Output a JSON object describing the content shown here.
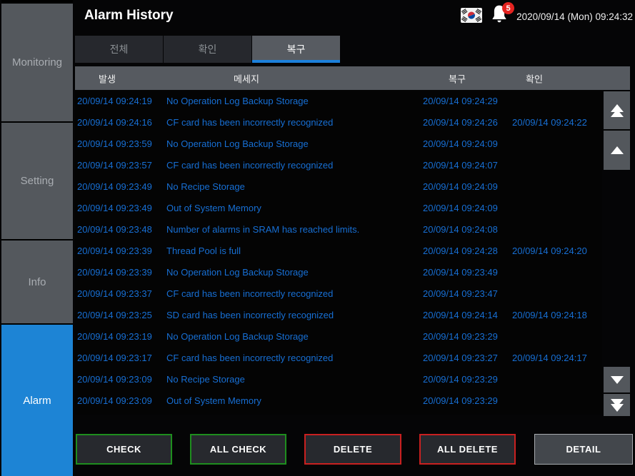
{
  "colors": {
    "accent_blue": "#1c80da",
    "sidebar_active_blue": "#1d84d5",
    "row_text_blue": "#176fd4",
    "badge_red": "#e42320",
    "check_border_green": "#1e8e1e",
    "delete_border_red": "#c92020",
    "header_gray": "#565a60"
  },
  "sidebar": {
    "items": [
      {
        "label": "Monitoring",
        "active": false
      },
      {
        "label": "Setting",
        "active": false
      },
      {
        "label": "Info",
        "active": false
      },
      {
        "label": "Alarm",
        "active": true
      }
    ]
  },
  "header": {
    "title": "Alarm History",
    "flag_icon": "south-korea-flag-icon",
    "bell_icon": "notification-bell-icon",
    "badge_count": "5",
    "datetime": "2020/09/14 (Mon) 09:24:32"
  },
  "tabs": [
    {
      "label": "전체",
      "active": false
    },
    {
      "label": "확인",
      "active": false
    },
    {
      "label": "복구",
      "active": true
    }
  ],
  "table": {
    "columns": [
      "발생",
      "메세지",
      "복구",
      "확인"
    ],
    "rows": [
      {
        "occurred": "20/09/14 09:24:19",
        "message": "No Operation Log Backup Storage",
        "recovered": "20/09/14 09:24:29",
        "checked": ""
      },
      {
        "occurred": "20/09/14 09:24:16",
        "message": "CF card has been incorrectly recognized",
        "recovered": "20/09/14 09:24:26",
        "checked": "20/09/14 09:24:22"
      },
      {
        "occurred": "20/09/14 09:23:59",
        "message": "No Operation Log Backup Storage",
        "recovered": "20/09/14 09:24:09",
        "checked": ""
      },
      {
        "occurred": "20/09/14 09:23:57",
        "message": "CF card has been incorrectly recognized",
        "recovered": "20/09/14 09:24:07",
        "checked": ""
      },
      {
        "occurred": "20/09/14 09:23:49",
        "message": "No Recipe Storage",
        "recovered": "20/09/14 09:24:09",
        "checked": ""
      },
      {
        "occurred": "20/09/14 09:23:49",
        "message": "Out of System Memory",
        "recovered": "20/09/14 09:24:09",
        "checked": ""
      },
      {
        "occurred": "20/09/14 09:23:48",
        "message": "Number of alarms in SRAM has reached limits.",
        "recovered": "20/09/14 09:24:08",
        "checked": ""
      },
      {
        "occurred": "20/09/14 09:23:39",
        "message": "Thread Pool is full",
        "recovered": "20/09/14 09:24:28",
        "checked": "20/09/14 09:24:20"
      },
      {
        "occurred": "20/09/14 09:23:39",
        "message": "No Operation Log Backup Storage",
        "recovered": "20/09/14 09:23:49",
        "checked": ""
      },
      {
        "occurred": "20/09/14 09:23:37",
        "message": "CF card has been incorrectly recognized",
        "recovered": "20/09/14 09:23:47",
        "checked": ""
      },
      {
        "occurred": "20/09/14 09:23:25",
        "message": "SD card has been incorrectly recognized",
        "recovered": "20/09/14 09:24:14",
        "checked": "20/09/14 09:24:18"
      },
      {
        "occurred": "20/09/14 09:23:19",
        "message": "No Operation Log Backup Storage",
        "recovered": "20/09/14 09:23:29",
        "checked": ""
      },
      {
        "occurred": "20/09/14 09:23:17",
        "message": "CF card has been incorrectly recognized",
        "recovered": "20/09/14 09:23:27",
        "checked": "20/09/14 09:24:17"
      },
      {
        "occurred": "20/09/14 09:23:09",
        "message": "No Recipe Storage",
        "recovered": "20/09/14 09:23:29",
        "checked": ""
      },
      {
        "occurred": "20/09/14 09:23:09",
        "message": "Out of System Memory",
        "recovered": "20/09/14 09:23:29",
        "checked": ""
      }
    ]
  },
  "scrollbar": {
    "controls": [
      {
        "name": "scroll-to-top",
        "glyph": "double-up"
      },
      {
        "name": "scroll-up",
        "glyph": "single-up"
      },
      {
        "name": "scroll-down",
        "glyph": "single-down"
      },
      {
        "name": "scroll-to-bottom",
        "glyph": "double-down"
      }
    ]
  },
  "actions": [
    {
      "label": "CHECK",
      "style": "green"
    },
    {
      "label": "ALL CHECK",
      "style": "green"
    },
    {
      "label": "DELETE",
      "style": "red"
    },
    {
      "label": "ALL DELETE",
      "style": "red"
    },
    {
      "label": "DETAIL",
      "style": "gray"
    }
  ]
}
